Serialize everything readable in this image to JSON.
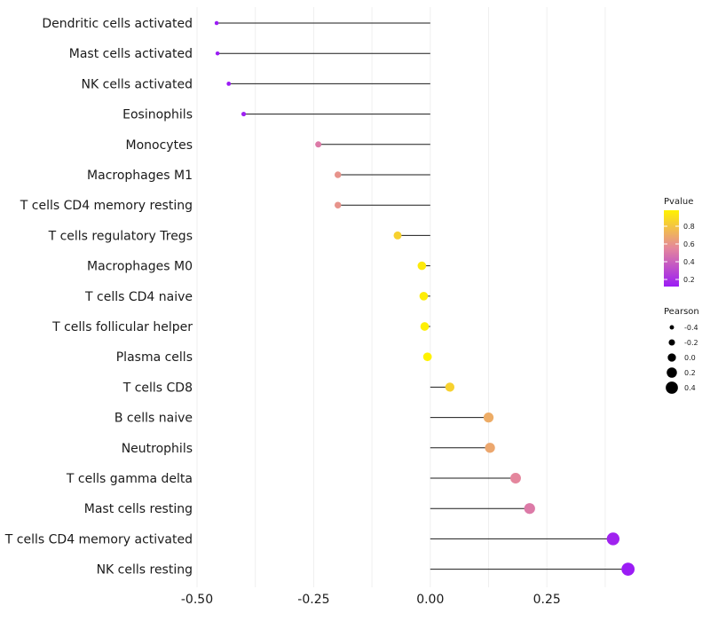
{
  "chart_data": {
    "type": "lollipop",
    "title": "",
    "xlabel": "",
    "ylabel": "",
    "xlim": [
      -0.5,
      0.47
    ],
    "xticks": [
      -0.5,
      -0.25,
      0.0,
      0.25
    ],
    "xtick_labels": [
      "-0.50",
      "-0.25",
      "0.00",
      "0.25"
    ],
    "categories": [
      "Dendritic cells activated",
      "Mast cells activated",
      "NK cells activated",
      "Eosinophils",
      "Monocytes",
      "Macrophages M1",
      "T cells CD4 memory resting",
      "T cells regulatory  Tregs ",
      "Macrophages M0",
      "T cells CD4 naive",
      "T cells follicular helper",
      "Plasma cells",
      "T cells CD8",
      "B cells naive",
      "Neutrophils",
      "T cells gamma delta",
      "Mast cells resting",
      "T cells CD4 memory activated",
      "NK cells resting"
    ],
    "pearson": [
      -0.458,
      -0.456,
      -0.432,
      -0.4,
      -0.24,
      -0.198,
      -0.198,
      -0.07,
      -0.018,
      -0.014,
      -0.012,
      -0.006,
      0.042,
      0.125,
      0.128,
      0.183,
      0.213,
      0.392,
      0.424
    ],
    "pvalue": [
      0.06,
      0.06,
      0.1,
      0.14,
      0.5,
      0.6,
      0.6,
      0.85,
      0.95,
      0.96,
      0.97,
      0.99,
      0.85,
      0.7,
      0.68,
      0.55,
      0.5,
      0.15,
      0.12
    ],
    "legend": {
      "color": {
        "title": "Pvalue",
        "ticks": [
          0.2,
          0.4,
          0.6,
          0.8
        ],
        "tick_labels": [
          "0.2",
          "0.4",
          "0.6",
          "0.8"
        ],
        "range": [
          0.12,
          0.98
        ],
        "low_color": "#9b1cf5",
        "mid_color": "#e4869d",
        "high_color": "#fff200"
      },
      "size": {
        "title": "Pearson",
        "values": [
          -0.4,
          -0.2,
          0.0,
          0.2,
          0.4
        ],
        "labels": [
          "-0.4",
          "-0.2",
          "0.0",
          "0.2",
          "0.4"
        ]
      },
      "position": "right"
    }
  }
}
